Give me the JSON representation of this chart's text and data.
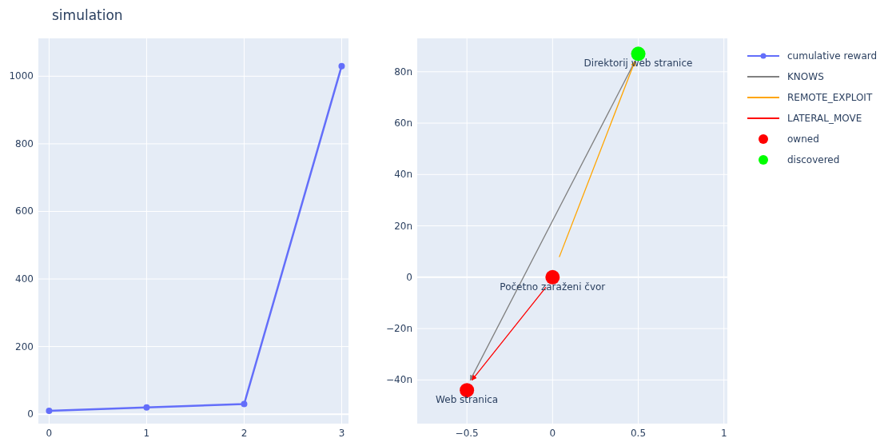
{
  "chart_data": [
    {
      "type": "line",
      "title": "simulation",
      "x": [
        0,
        1,
        2,
        3
      ],
      "xlim": [
        -0.11,
        3.07
      ],
      "xticks": [
        0,
        1,
        2,
        3
      ],
      "ylim": [
        -28,
        1112
      ],
      "yticks": [
        0,
        200,
        400,
        600,
        800,
        1000
      ],
      "grid": true,
      "legend": "right",
      "marker": "circle",
      "series": [
        {
          "name": "cumulative reward",
          "color": "#636efa",
          "values": [
            10,
            20,
            30,
            1030
          ]
        }
      ]
    },
    {
      "type": "scatter",
      "xlim": [
        -0.79,
        1.02
      ],
      "xticks": [
        {
          "value": -0.5,
          "label": "−0.5"
        },
        0,
        0.5,
        1
      ],
      "ylim": [
        -57,
        93
      ],
      "yticks": [
        {
          "value": -40,
          "label": "−40n"
        },
        {
          "value": -20,
          "label": "−20n"
        },
        0,
        {
          "value": 20,
          "label": "20n"
        },
        {
          "value": 40,
          "label": "40n"
        },
        {
          "value": 60,
          "label": "60n"
        },
        {
          "value": 80,
          "label": "80n"
        }
      ],
      "grid": true,
      "legend": "right",
      "series": [
        {
          "name": "KNOWS",
          "type": "line",
          "marker": "none",
          "color": "#808080",
          "x": [
            0.48,
            -0.48
          ],
          "values": [
            84,
            -40
          ]
        },
        {
          "name": "REMOTE_EXPLOIT",
          "type": "line",
          "marker": "none",
          "color": "#ffa500",
          "x": [
            0.04,
            0.48
          ],
          "values": [
            8,
            84
          ]
        },
        {
          "name": "LATERAL_MOVE",
          "type": "line",
          "marker": "none",
          "color": "#ff0000",
          "x": [
            -0.04,
            -0.47
          ],
          "values": [
            -4,
            -40
          ]
        },
        {
          "name": "owned",
          "type": "scatter",
          "marker": "circle",
          "color": "#ff0000",
          "x": [
            0,
            -0.5
          ],
          "values": [
            0,
            -44
          ]
        },
        {
          "name": "discovered",
          "type": "scatter",
          "marker": "circle",
          "color": "#00ff00",
          "x": [
            0.5
          ],
          "values": [
            87
          ]
        }
      ],
      "annotations": [
        {
          "text": "Početno zaraženi čvor",
          "x": 0,
          "y": 0
        },
        {
          "text": "Web stranica",
          "x": -0.5,
          "y": -44
        },
        {
          "text": "Direktorij web stranice",
          "x": 0.5,
          "y": 87
        }
      ]
    }
  ]
}
